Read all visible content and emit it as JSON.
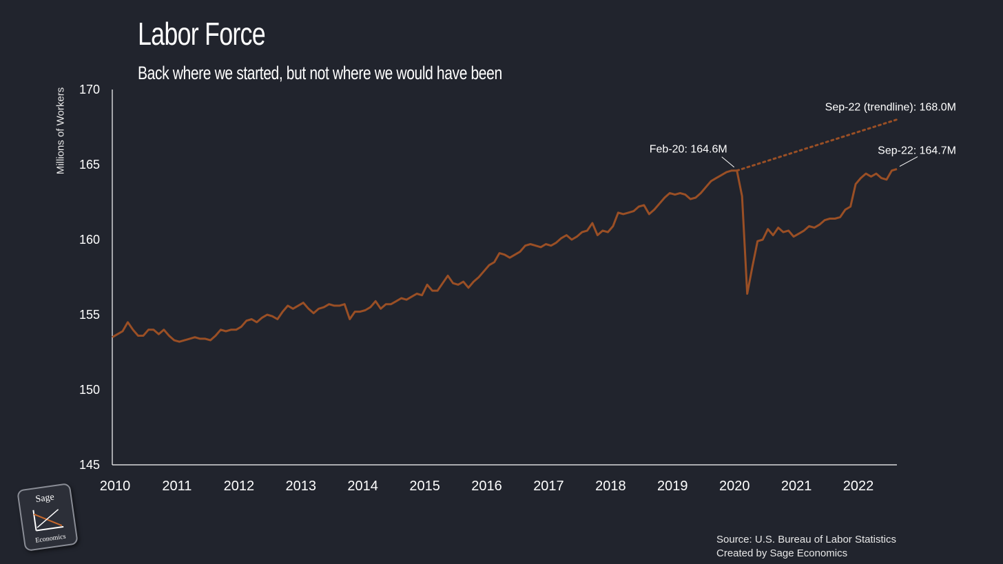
{
  "title": "Labor Force",
  "subtitle": "Back where we started, but not where we would have been",
  "footer": {
    "source": "Source: U.S. Bureau of Labor Statistics",
    "credit": "Created by Sage Economics"
  },
  "logo": {
    "top": "Sage",
    "bottom": "Economics"
  },
  "colors": {
    "background": "#21242d",
    "series": "#9a4f25",
    "text": "#ffffff"
  },
  "chart_data": {
    "type": "line",
    "ylabel": "Millions of Workers",
    "xlabel": "",
    "ylim": [
      145,
      170
    ],
    "yticks": [
      170,
      165,
      160,
      155,
      150,
      145
    ],
    "xticks": [
      "2010",
      "2011",
      "2012",
      "2013",
      "2014",
      "2015",
      "2016",
      "2017",
      "2018",
      "2019",
      "2020",
      "2021",
      "2022"
    ],
    "x_range": [
      "2010-01",
      "2022-09"
    ],
    "grid": false,
    "series": [
      {
        "kind": "actual",
        "start": "2010-01",
        "frequency": "monthly",
        "values": [
          153.5,
          153.7,
          153.9,
          154.5,
          154.0,
          153.6,
          153.6,
          154.0,
          154.0,
          153.7,
          154.0,
          153.6,
          153.3,
          153.2,
          153.3,
          153.4,
          153.5,
          153.4,
          153.4,
          153.3,
          153.6,
          154.0,
          153.9,
          154.0,
          154.0,
          154.2,
          154.6,
          154.7,
          154.5,
          154.8,
          155.0,
          154.9,
          154.7,
          155.2,
          155.6,
          155.4,
          155.6,
          155.8,
          155.4,
          155.1,
          155.4,
          155.5,
          155.7,
          155.6,
          155.6,
          155.7,
          154.7,
          155.2,
          155.2,
          155.3,
          155.5,
          155.9,
          155.4,
          155.7,
          155.7,
          155.9,
          156.1,
          156.0,
          156.2,
          156.4,
          156.3,
          157.0,
          156.6,
          156.6,
          157.1,
          157.6,
          157.1,
          157.0,
          157.2,
          156.8,
          157.2,
          157.5,
          157.9,
          158.3,
          158.5,
          159.1,
          159.0,
          158.8,
          159.0,
          159.2,
          159.6,
          159.7,
          159.6,
          159.5,
          159.7,
          159.6,
          159.8,
          160.1,
          160.3,
          160.0,
          160.2,
          160.5,
          160.6,
          161.1,
          160.3,
          160.6,
          160.5,
          160.9,
          161.8,
          161.7,
          161.8,
          161.9,
          162.2,
          162.3,
          161.7,
          162.0,
          162.4,
          162.8,
          163.1,
          163.0,
          163.1,
          163.0,
          162.7,
          162.8,
          163.1,
          163.5,
          163.9,
          164.1,
          164.3,
          164.5,
          164.6,
          164.6,
          162.9,
          156.4,
          158.2,
          159.9,
          160.0,
          160.7,
          160.3,
          160.8,
          160.5,
          160.6,
          160.2,
          160.4,
          160.6,
          160.9,
          160.8,
          161.0,
          161.3,
          161.4,
          161.4,
          161.5,
          162.0,
          162.2,
          163.7,
          164.1,
          164.4,
          164.2,
          164.4,
          164.1,
          164.0,
          164.6,
          164.7
        ]
      },
      {
        "kind": "trendline",
        "points": [
          [
            "2020-02",
            164.6
          ],
          [
            "2022-09",
            168.0
          ]
        ]
      }
    ],
    "annotations": [
      {
        "label": "Feb-20: 164.6M",
        "x": "2020-02",
        "y": 164.6,
        "placement": "above-left"
      },
      {
        "label": "Sep-22: 164.7M",
        "x": "2022-09",
        "y": 164.7,
        "placement": "above-right"
      },
      {
        "label": "Sep-22 (trendline): 168.0M",
        "x": "2022-09",
        "y": 168.0,
        "placement": "above"
      }
    ]
  }
}
